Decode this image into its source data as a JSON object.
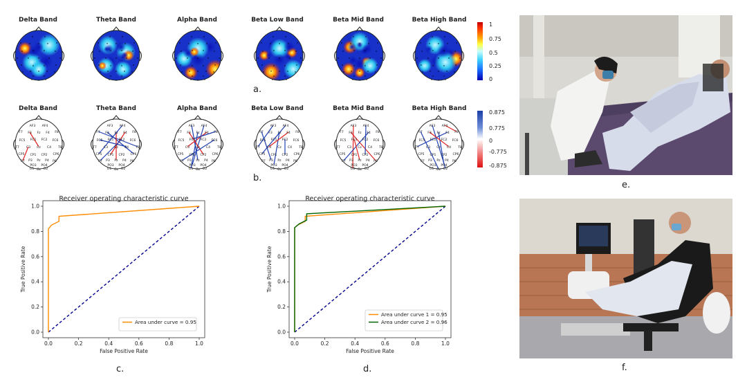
{
  "bands": [
    "Delta Band",
    "Theta Band",
    "Alpha Band",
    "Beta Low Band",
    "Beta Mid Band",
    "Beta High Band"
  ],
  "panel_labels": {
    "a": "a.",
    "b": "b.",
    "c": "c.",
    "d": "d.",
    "e": "e.",
    "f": "f."
  },
  "colorbar_a": {
    "ticks": [
      "1",
      "0.75",
      "0.5",
      "0.25",
      "0"
    ]
  },
  "colorbar_b": {
    "ticks": [
      "0.875",
      "0.775",
      "0",
      "-0.775",
      "-0.875"
    ]
  },
  "electrodes": [
    "AF3",
    "AF4",
    "F7",
    "F3",
    "Fz",
    "F4",
    "F8",
    "FC5",
    "FC1",
    "FC2",
    "FC6",
    "T7",
    "C3",
    "Cz",
    "C4",
    "T8",
    "CP5",
    "CP1",
    "CP2",
    "CP6",
    "P7",
    "P3",
    "Pz",
    "P4",
    "P8",
    "PO3",
    "PO4",
    "O1",
    "Oz",
    "O2"
  ],
  "chart_data": [
    {
      "type": "line",
      "title": "Receiver operating characteristic curve",
      "xlabel": "False Positive Rate",
      "ylabel": "True Positive Rate",
      "xlim": [
        0,
        1
      ],
      "ylim": [
        0,
        1
      ],
      "xticks": [
        "0.0",
        "0.2",
        "0.4",
        "0.6",
        "0.8",
        "1.0"
      ],
      "yticks": [
        "0.0",
        "0.2",
        "0.4",
        "0.6",
        "0.8",
        "1.0"
      ],
      "series": [
        {
          "name": "Area under curve = 0.95",
          "color": "#ff8c00",
          "x": [
            0,
            0,
            0.02,
            0.07,
            0.07,
            1.0
          ],
          "y": [
            0,
            0.82,
            0.85,
            0.88,
            0.92,
            1.0
          ]
        }
      ],
      "diagonal": {
        "color": "#00008b",
        "x": [
          0,
          1
        ],
        "y": [
          0,
          1
        ]
      },
      "legend": "lower-right"
    },
    {
      "type": "line",
      "title": "Receiver operating characteristic curve",
      "xlabel": "False Positive Rate",
      "ylabel": "True Positive Rate",
      "xlim": [
        0,
        1
      ],
      "ylim": [
        0,
        1
      ],
      "xticks": [
        "0.0",
        "0.2",
        "0.4",
        "0.6",
        "0.8",
        "1.0"
      ],
      "yticks": [
        "0.0",
        "0.2",
        "0.4",
        "0.6",
        "0.8",
        "1.0"
      ],
      "series": [
        {
          "name": "Area under curve 1 = 0.95",
          "color": "#ff8c00",
          "x": [
            0,
            0,
            0.02,
            0.07,
            0.07,
            1.0
          ],
          "y": [
            0,
            0.83,
            0.85,
            0.88,
            0.92,
            1.0
          ]
        },
        {
          "name": "Area under curve 2 = 0.96",
          "color": "#006400",
          "x": [
            0,
            0,
            0.03,
            0.08,
            0.08,
            1.0
          ],
          "y": [
            0,
            0.83,
            0.86,
            0.89,
            0.94,
            1.0
          ]
        }
      ],
      "diagonal": {
        "color": "#00008b",
        "x": [
          0,
          1
        ],
        "y": [
          0,
          1
        ]
      },
      "legend": "lower-right"
    }
  ]
}
